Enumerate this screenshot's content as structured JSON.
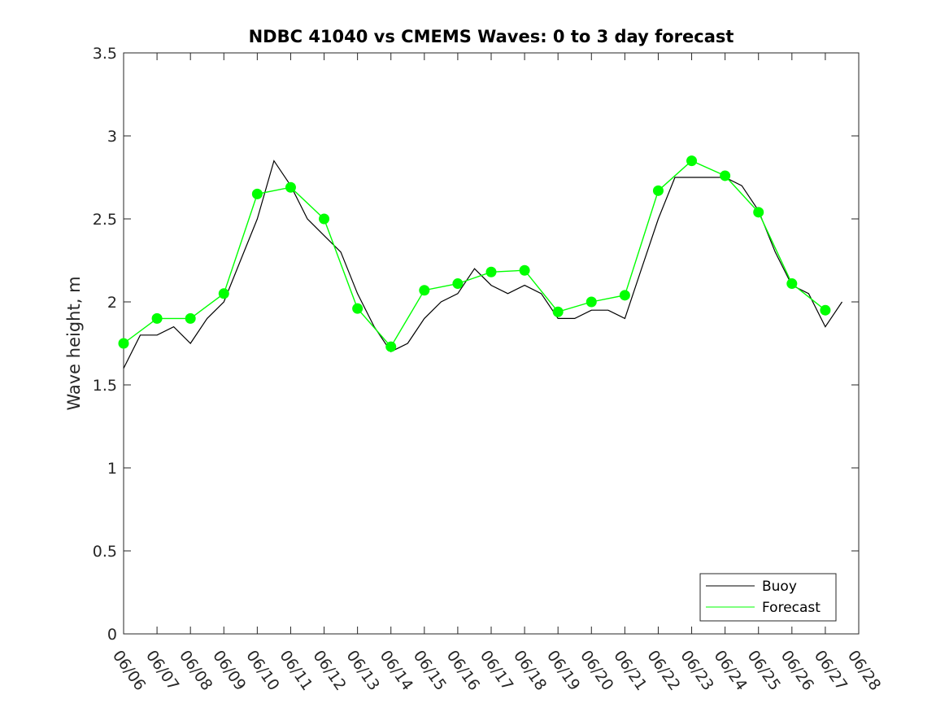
{
  "chart_data": {
    "type": "line",
    "title": "NDBC 41040 vs CMEMS Waves: 0 to 3 day forecast",
    "xlabel": "",
    "ylabel": "Wave height, m",
    "x_range": [
      "06/06",
      "06/28"
    ],
    "ylim": [
      0,
      3.5
    ],
    "x_ticks": [
      "06/06",
      "06/07",
      "06/08",
      "06/09",
      "06/10",
      "06/11",
      "06/12",
      "06/13",
      "06/14",
      "06/15",
      "06/16",
      "06/17",
      "06/18",
      "06/19",
      "06/20",
      "06/21",
      "06/22",
      "06/23",
      "06/24",
      "06/25",
      "06/26",
      "06/27",
      "06/28"
    ],
    "y_ticks": [
      "0",
      "0.5",
      "1",
      "1.5",
      "2",
      "2.5",
      "3",
      "3.5"
    ],
    "grid": false,
    "legend_position": "bottom-right",
    "legend": [
      "Buoy",
      "Forecast"
    ],
    "colors": {
      "buoy": "#000000",
      "forecast": "#00ff00"
    },
    "series": [
      {
        "name": "Buoy",
        "x": [
          "06/06",
          "06/06 12:00",
          "06/07",
          "06/07 12:00",
          "06/08",
          "06/08 12:00",
          "06/09",
          "06/09 12:00",
          "06/10",
          "06/10 12:00",
          "06/11",
          "06/11 12:00",
          "06/12",
          "06/12 12:00",
          "06/13",
          "06/13 12:00",
          "06/14",
          "06/14 12:00",
          "06/15",
          "06/15 12:00",
          "06/16",
          "06/16 12:00",
          "06/17",
          "06/17 12:00",
          "06/18",
          "06/18 12:00",
          "06/19",
          "06/19 12:00",
          "06/20",
          "06/20 12:00",
          "06/21",
          "06/21 12:00",
          "06/22",
          "06/22 12:00",
          "06/23",
          "06/23 12:00",
          "06/24",
          "06/24 12:00",
          "06/25",
          "06/25 12:00",
          "06/26",
          "06/26 12:00",
          "06/27",
          "06/27 12:00"
        ],
        "y": [
          1.6,
          1.8,
          1.8,
          1.85,
          1.75,
          1.9,
          2.0,
          2.25,
          2.5,
          2.85,
          2.7,
          2.5,
          2.4,
          2.3,
          2.05,
          1.85,
          1.7,
          1.75,
          1.9,
          2.0,
          2.05,
          2.2,
          2.1,
          2.05,
          2.1,
          2.05,
          1.9,
          1.9,
          1.95,
          1.95,
          1.9,
          2.2,
          2.5,
          2.75,
          2.75,
          2.75,
          2.75,
          2.7,
          2.55,
          2.3,
          2.1,
          2.05,
          1.85,
          2.0
        ]
      },
      {
        "name": "Forecast",
        "x": [
          "06/06",
          "06/07",
          "06/08",
          "06/09",
          "06/10",
          "06/11",
          "06/12",
          "06/13",
          "06/14",
          "06/15",
          "06/16",
          "06/17",
          "06/18",
          "06/19",
          "06/20",
          "06/21",
          "06/22",
          "06/23",
          "06/24",
          "06/25",
          "06/26",
          "06/27"
        ],
        "y": [
          1.75,
          1.9,
          1.9,
          2.05,
          2.65,
          2.69,
          2.5,
          1.96,
          1.73,
          2.07,
          2.11,
          2.18,
          2.19,
          1.94,
          2.0,
          2.04,
          2.67,
          2.85,
          2.76,
          2.54,
          2.11,
          1.95
        ]
      }
    ]
  }
}
